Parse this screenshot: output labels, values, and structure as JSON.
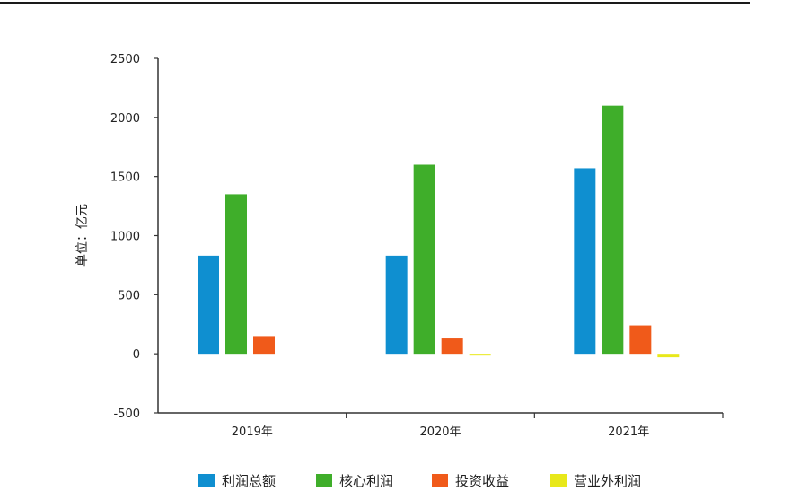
{
  "chart_data": {
    "type": "bar",
    "title": "",
    "ylabel": "单位：亿元",
    "xlabel": "",
    "ylim": [
      -500,
      2500
    ],
    "yticks": [
      2500,
      2000,
      1500,
      1000,
      500,
      0,
      -500
    ],
    "categories": [
      "2019年",
      "2020年",
      "2021年"
    ],
    "series": [
      {
        "name": "利润总额",
        "color": "#0f8fd0",
        "values": [
          830,
          830,
          1570
        ]
      },
      {
        "name": "核心利润",
        "color": "#3fae2a",
        "values": [
          1350,
          1600,
          2100
        ]
      },
      {
        "name": "投资收益",
        "color": "#f05a1a",
        "values": [
          150,
          130,
          240
        ]
      },
      {
        "name": "营业外利润",
        "color": "#e8e81a",
        "values": [
          null,
          -15,
          -30
        ]
      }
    ],
    "grid": false,
    "legend_position": "bottom"
  }
}
